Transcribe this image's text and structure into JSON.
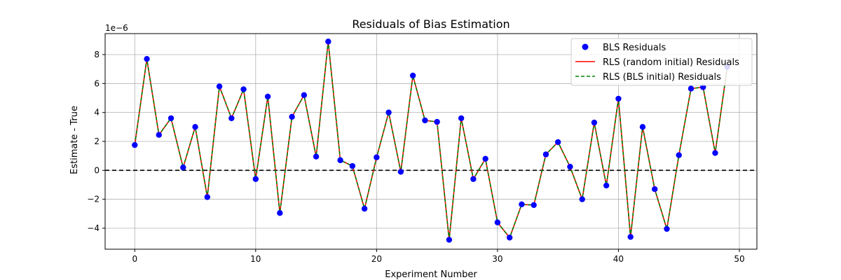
{
  "chart_data": {
    "type": "line",
    "title": "Residuals of Bias Estimation",
    "xlabel": "Experiment Number",
    "ylabel": "Estimate - True",
    "y_offset_text": "1e−6",
    "xlim": [
      -2.45,
      51.45
    ],
    "ylim": [
      -5.45,
      9.45
    ],
    "xticks": [
      0,
      10,
      20,
      30,
      40,
      50
    ],
    "yticks": [
      -4,
      -2,
      0,
      2,
      4,
      6,
      8
    ],
    "grid": true,
    "legend_position": "top-right",
    "reference_line": {
      "y": 0,
      "color": "#000000",
      "style": "dashed"
    },
    "x": [
      0,
      1,
      2,
      3,
      4,
      5,
      6,
      7,
      8,
      9,
      10,
      11,
      12,
      13,
      14,
      15,
      16,
      17,
      18,
      19,
      20,
      21,
      22,
      23,
      24,
      25,
      26,
      27,
      28,
      29,
      30,
      31,
      32,
      33,
      34,
      35,
      36,
      37,
      38,
      39,
      40,
      41,
      42,
      43,
      44,
      45,
      46,
      47,
      48,
      49
    ],
    "values": [
      1.75,
      7.7,
      2.45,
      3.6,
      0.2,
      3.0,
      -1.85,
      5.8,
      3.6,
      5.6,
      -0.6,
      5.1,
      -2.95,
      3.7,
      5.2,
      0.95,
      8.9,
      0.7,
      0.3,
      -2.65,
      0.9,
      4.0,
      -0.1,
      6.55,
      3.45,
      3.35,
      -4.8,
      3.6,
      -0.6,
      0.8,
      -3.6,
      -4.65,
      -2.35,
      -2.4,
      1.1,
      1.95,
      0.25,
      -2.0,
      3.3,
      -1.05,
      4.95,
      -4.6,
      3.0,
      -1.3,
      -4.05,
      1.05,
      5.65,
      5.75,
      1.2,
      7.15
    ],
    "series": [
      {
        "name": "BLS Residuals",
        "color": "#0000ff",
        "style": "markers"
      },
      {
        "name": "RLS (random initial) Residuals",
        "color": "#ff0000",
        "style": "solid"
      },
      {
        "name": "RLS (BLS initial) Residuals",
        "color": "#008000",
        "style": "dashed"
      }
    ]
  }
}
